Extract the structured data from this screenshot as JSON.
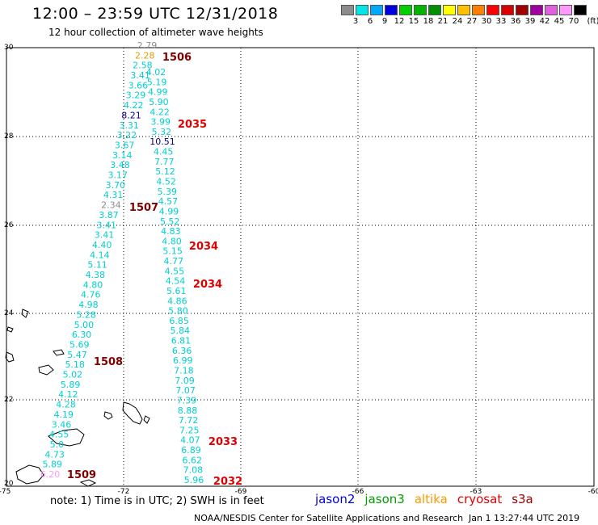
{
  "header": {
    "title": "12:00 – 23:59 UTC 12/31/2018",
    "subtitle": "12 hour collection of altimeter wave heights"
  },
  "legend": {
    "labels": [
      "3",
      "6",
      "9",
      "12",
      "15",
      "18",
      "21",
      "24",
      "27",
      "30",
      "33",
      "36",
      "39",
      "42",
      "45",
      "70"
    ],
    "unit": "(ft)",
    "colors": [
      "#8c8c8c",
      "#00e5e5",
      "#00a8ff",
      "#0000e0",
      "#00d000",
      "#00b400",
      "#009000",
      "#ffff00",
      "#ffc000",
      "#ff8000",
      "#ff0000",
      "#d80000",
      "#a00000",
      "#a000a0",
      "#e060e0",
      "#ff99ff",
      "#000000"
    ]
  },
  "axes": {
    "lon_labels": [
      "-75",
      "-72",
      "-69",
      "-66",
      "-63",
      "-60"
    ],
    "lat_labels": [
      "30",
      "28",
      "26",
      "24",
      "22",
      "20"
    ]
  },
  "passes": [
    {
      "label": "1506",
      "color": "#800000"
    },
    {
      "label": "2035",
      "color": "#e00000"
    },
    {
      "label": "1507",
      "color": "#800000"
    },
    {
      "label": "2034",
      "color": "#e00000"
    },
    {
      "label": "2034",
      "color": "#e00000"
    },
    {
      "label": "1508",
      "color": "#800000"
    },
    {
      "label": "2033",
      "color": "#e00000"
    },
    {
      "label": "1509",
      "color": "#800000"
    },
    {
      "label": "2032",
      "color": "#e00000"
    }
  ],
  "track_left": [
    "2.79",
    "2.28",
    "2.58",
    "3.41",
    "3.66",
    "3.29",
    "4.22",
    "8.21",
    "3.31",
    "3.22",
    "3.67",
    "3.14",
    "3.48",
    "3.17",
    "3.70",
    "4.31",
    "2.34",
    "3.87",
    "3.41",
    "3.41",
    "4.40",
    "4.14",
    "5.11",
    "4.38",
    "4.80",
    "4.76",
    "4.98",
    "5.28",
    "5.00",
    "6.30",
    "5.69",
    "5.47",
    "5.18",
    "5.02",
    "5.89",
    "4.12",
    "4.28",
    "4.19",
    "3.46",
    "4.55",
    "5.0",
    "4.73",
    "5.89",
    "6.20"
  ],
  "track_right": [
    "4.02",
    "5.19",
    "4.99",
    "5.90",
    "4.22",
    "3.99",
    "5.32",
    "10.51",
    "4.45",
    "7.77",
    "5.12",
    "4.52",
    "5.39",
    "4.57",
    "4.99",
    "5.52",
    "4.83",
    "4.80",
    "5.15",
    "4.77",
    "4.55",
    "4.54",
    "5.61",
    "4.86",
    "5.80",
    "6.85",
    "5.84",
    "6.81",
    "6.36",
    "6.99",
    "7.18",
    "7.09",
    "7.07",
    "7.39",
    "8.88",
    "7.72",
    "7.25",
    "4.07",
    "6.89",
    "6.62",
    "7.08",
    "5.96"
  ],
  "footer": {
    "note": "note: 1) Time is in UTC; 2) SWH is in feet",
    "satellites": [
      {
        "name": "jason2",
        "color": "#0000e0"
      },
      {
        "name": "jason3",
        "color": "#00a000"
      },
      {
        "name": "altika",
        "color": "#ff9900"
      },
      {
        "name": "cryosat",
        "color": "#e00000"
      },
      {
        "name": "s3a",
        "color": "#a00000"
      }
    ],
    "credit": "NOAA/NESDIS Center for Satellite Applications and Research",
    "generated": "Jan  1 13:27:44 UTC 2019"
  }
}
